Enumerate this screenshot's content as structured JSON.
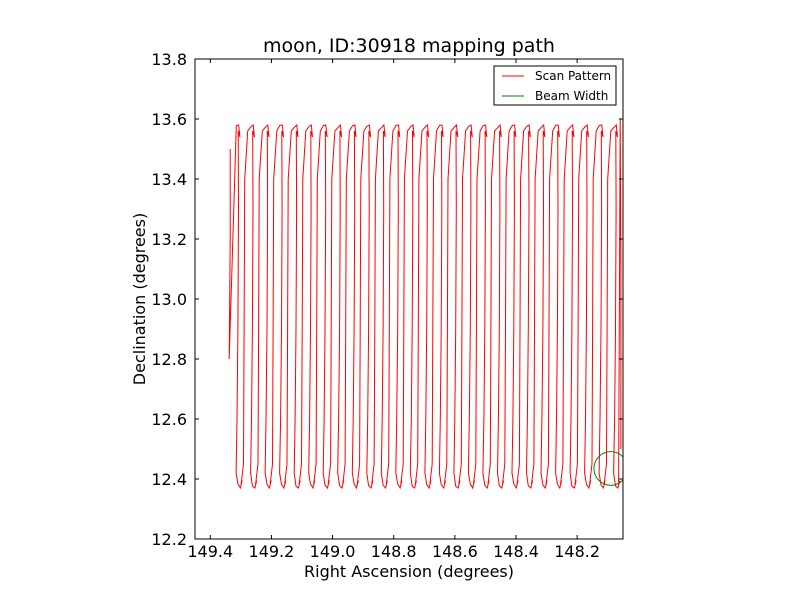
{
  "chart_data": {
    "type": "line",
    "title": "moon, ID:30918 mapping path",
    "xlabel": "Right Ascension (degrees)",
    "ylabel": "Declination (degrees)",
    "xlim": [
      149.45,
      148.05
    ],
    "ylim": [
      12.2,
      13.8
    ],
    "x_ticks": [
      149.4,
      149.2,
      149.0,
      148.8,
      148.6,
      148.4,
      148.2
    ],
    "x_tick_labels": [
      "149.4",
      "149.2",
      "149.0",
      "148.8",
      "148.6",
      "148.4",
      "148.2"
    ],
    "y_ticks": [
      12.2,
      12.4,
      12.6,
      12.8,
      13.0,
      13.2,
      13.4,
      13.6,
      13.8
    ],
    "y_tick_labels": [
      "12.2",
      "12.4",
      "12.6",
      "12.8",
      "13.0",
      "13.2",
      "13.4",
      "13.6",
      "13.8"
    ],
    "grid": false,
    "legend_position": "top-right",
    "series": [
      {
        "name": "Scan Pattern",
        "color": "#ff0000",
        "scan": {
          "start_ra": 149.335,
          "start_dec": 13.5,
          "leg_count": 27,
          "ra_step": 0.0475,
          "dec_low": 12.37,
          "dec_high": 13.58,
          "end_ra": 148.057,
          "end_dec": 12.5
        }
      },
      {
        "name": "Beam Width",
        "color": "#008000",
        "circle": {
          "center_ra": 148.09,
          "center_dec": 12.435,
          "radius_deg": 0.055
        }
      }
    ]
  }
}
